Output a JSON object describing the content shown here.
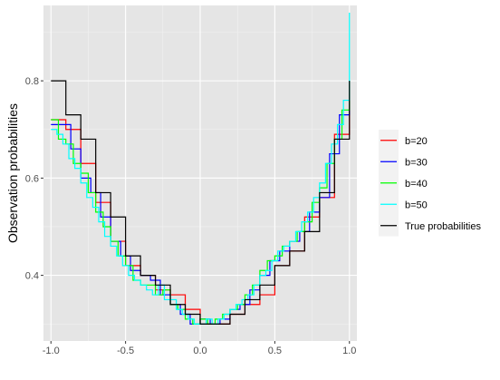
{
  "chart_data": {
    "type": "line",
    "title": "",
    "xlabel": "",
    "ylabel": "Observation probabilities",
    "xlim": [
      -1.05,
      1.05
    ],
    "ylim": [
      0.265,
      0.955
    ],
    "x_ticks": [
      -1.0,
      -0.5,
      0.0,
      0.5,
      1.0
    ],
    "x_tick_labels": [
      "-1.0",
      "-0.5",
      "0.0",
      "0.5",
      "1.0"
    ],
    "y_ticks": [
      0.4,
      0.6,
      0.8
    ],
    "y_tick_labels": [
      "0.4",
      "0.6",
      "0.8"
    ],
    "grid": true,
    "background": "#e5e5e5",
    "legend_position": "right",
    "step": true,
    "series": [
      {
        "name": "b=20",
        "color": "#ff0000",
        "x": [
          -1.0,
          -0.9,
          -0.8,
          -0.7,
          -0.6,
          -0.5,
          -0.4,
          -0.3,
          -0.2,
          -0.1,
          0.0,
          0.1,
          0.2,
          0.3,
          0.4,
          0.5,
          0.6,
          0.7,
          0.8,
          0.9,
          1.0
        ],
        "y": [
          0.72,
          0.7,
          0.63,
          0.55,
          0.47,
          0.42,
          0.4,
          0.37,
          0.36,
          0.33,
          0.3,
          0.3,
          0.32,
          0.34,
          0.36,
          0.42,
          0.45,
          0.52,
          0.56,
          0.69,
          0.8
        ]
      },
      {
        "name": "b=30",
        "color": "#0000ff",
        "x": [
          -1.0,
          -0.933,
          -0.867,
          -0.8,
          -0.733,
          -0.667,
          -0.6,
          -0.533,
          -0.467,
          -0.4,
          -0.333,
          -0.267,
          -0.2,
          -0.133,
          -0.067,
          0.0,
          0.067,
          0.133,
          0.2,
          0.267,
          0.333,
          0.4,
          0.467,
          0.533,
          0.6,
          0.667,
          0.733,
          0.8,
          0.867,
          0.933,
          1.0
        ],
        "y": [
          0.71,
          0.71,
          0.66,
          0.6,
          0.57,
          0.52,
          0.47,
          0.44,
          0.41,
          0.4,
          0.39,
          0.36,
          0.34,
          0.32,
          0.3,
          0.31,
          0.3,
          0.31,
          0.33,
          0.34,
          0.37,
          0.4,
          0.43,
          0.45,
          0.47,
          0.49,
          0.53,
          0.56,
          0.65,
          0.73,
          0.8
        ]
      },
      {
        "name": "b=40",
        "color": "#00ff00",
        "x": [
          -1.0,
          -0.95,
          -0.9,
          -0.85,
          -0.8,
          -0.75,
          -0.7,
          -0.65,
          -0.6,
          -0.55,
          -0.5,
          -0.45,
          -0.4,
          -0.35,
          -0.3,
          -0.25,
          -0.2,
          -0.15,
          -0.1,
          -0.05,
          0.0,
          0.05,
          0.1,
          0.15,
          0.2,
          0.25,
          0.3,
          0.35,
          0.4,
          0.45,
          0.5,
          0.55,
          0.6,
          0.65,
          0.7,
          0.75,
          0.8,
          0.85,
          0.9,
          0.95,
          1.0
        ],
        "y": [
          0.72,
          0.68,
          0.67,
          0.63,
          0.61,
          0.57,
          0.53,
          0.5,
          0.47,
          0.44,
          0.42,
          0.39,
          0.38,
          0.38,
          0.36,
          0.37,
          0.34,
          0.33,
          0.31,
          0.3,
          0.31,
          0.3,
          0.31,
          0.32,
          0.33,
          0.34,
          0.36,
          0.38,
          0.41,
          0.43,
          0.44,
          0.46,
          0.47,
          0.49,
          0.51,
          0.55,
          0.58,
          0.63,
          0.68,
          0.74,
          0.8
        ]
      },
      {
        "name": "b=50",
        "color": "#00ffff",
        "x": [
          -1.0,
          -0.96,
          -0.92,
          -0.88,
          -0.84,
          -0.8,
          -0.76,
          -0.72,
          -0.68,
          -0.64,
          -0.6,
          -0.56,
          -0.52,
          -0.48,
          -0.44,
          -0.4,
          -0.36,
          -0.32,
          -0.28,
          -0.24,
          -0.2,
          -0.16,
          -0.12,
          -0.08,
          -0.04,
          0.0,
          0.04,
          0.08,
          0.12,
          0.16,
          0.2,
          0.24,
          0.28,
          0.32,
          0.36,
          0.4,
          0.44,
          0.48,
          0.52,
          0.56,
          0.6,
          0.64,
          0.68,
          0.72,
          0.76,
          0.8,
          0.84,
          0.88,
          0.92,
          0.96,
          1.0
        ],
        "y": [
          0.7,
          0.69,
          0.67,
          0.64,
          0.62,
          0.59,
          0.56,
          0.54,
          0.51,
          0.48,
          0.46,
          0.44,
          0.42,
          0.4,
          0.39,
          0.38,
          0.37,
          0.36,
          0.38,
          0.35,
          0.35,
          0.33,
          0.32,
          0.31,
          0.3,
          0.3,
          0.31,
          0.3,
          0.31,
          0.32,
          0.33,
          0.34,
          0.35,
          0.36,
          0.38,
          0.4,
          0.41,
          0.43,
          0.45,
          0.46,
          0.47,
          0.49,
          0.51,
          0.53,
          0.56,
          0.59,
          0.63,
          0.67,
          0.71,
          0.76,
          0.94
        ]
      },
      {
        "name": "True probabilities",
        "color": "#000000",
        "x": [
          -1.0,
          -0.9,
          -0.8,
          -0.7,
          -0.6,
          -0.5,
          -0.4,
          -0.3,
          -0.2,
          -0.1,
          0.0,
          0.1,
          0.2,
          0.3,
          0.4,
          0.5,
          0.6,
          0.7,
          0.8,
          0.9,
          1.0
        ],
        "y": [
          0.8,
          0.73,
          0.68,
          0.57,
          0.52,
          0.44,
          0.4,
          0.38,
          0.34,
          0.32,
          0.3,
          0.3,
          0.32,
          0.35,
          0.38,
          0.42,
          0.45,
          0.49,
          0.57,
          0.68,
          0.8
        ]
      }
    ]
  }
}
